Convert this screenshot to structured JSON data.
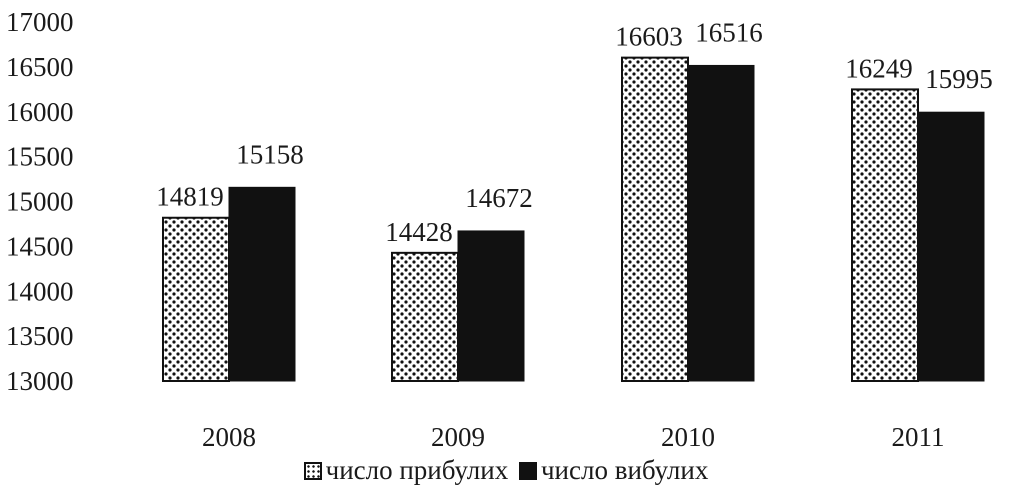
{
  "chart_data": {
    "type": "bar",
    "categories": [
      "2008",
      "2009",
      "2010",
      "2011"
    ],
    "series": [
      {
        "name": "число прибулих",
        "values": [
          14819,
          14428,
          16603,
          16249
        ],
        "pattern": "dotted"
      },
      {
        "name": "число вибулих",
        "values": [
          15158,
          14672,
          16516,
          15995
        ],
        "pattern": "solid"
      }
    ],
    "title": "",
    "xlabel": "",
    "ylabel": "",
    "ylim": [
      13000,
      17000
    ],
    "yticks": [
      "13000",
      "13500",
      "14000",
      "14500",
      "15000",
      "15500",
      "16000",
      "16500",
      "17000"
    ],
    "grid": false,
    "legend_position": "bottom",
    "colors": {
      "dotted_fill": "#ffffff",
      "dotted_dots": "#111111",
      "solid_fill": "#111111",
      "text": "#1a1a1a"
    }
  }
}
